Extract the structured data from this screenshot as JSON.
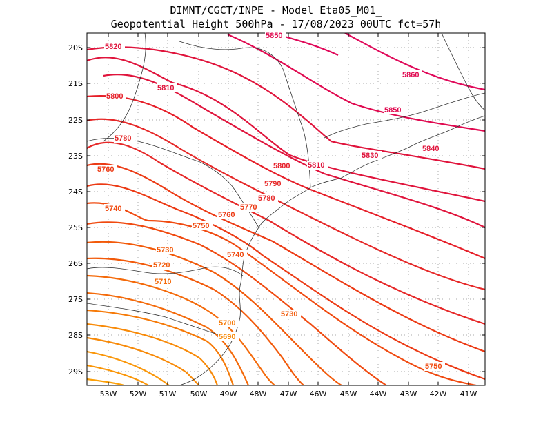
{
  "title_line1": "DIMNT/CGCT/INPE  -  Model Eta05_M01_",
  "title_line2": "Geopotential Height 500hPa  -  17/08/2023 00UTC fct=57h",
  "lat_ticks": [
    "20S",
    "21S",
    "22S",
    "23S",
    "24S",
    "25S",
    "26S",
    "27S",
    "28S",
    "29S"
  ],
  "lon_ticks": [
    "53W",
    "52W",
    "51W",
    "50W",
    "49W",
    "48W",
    "47W",
    "46W",
    "45W",
    "44W",
    "43W",
    "42W",
    "41W"
  ],
  "contour_labels": [
    {
      "text": "5850",
      "color": "#e00a50"
    },
    {
      "text": "5820",
      "color": "#e0143c"
    },
    {
      "text": "5860",
      "color": "#e00a50"
    },
    {
      "text": "5810",
      "color": "#e0143c"
    },
    {
      "text": "5800",
      "color": "#e61e28"
    },
    {
      "text": "5850",
      "color": "#e00a50"
    },
    {
      "text": "5780",
      "color": "#e62828"
    },
    {
      "text": "5840",
      "color": "#e0143c"
    },
    {
      "text": "5830",
      "color": "#e0143c"
    },
    {
      "text": "5800",
      "color": "#e61e28"
    },
    {
      "text": "5810",
      "color": "#e0143c"
    },
    {
      "text": "5760",
      "color": "#ec3a14"
    },
    {
      "text": "5790",
      "color": "#e62828"
    },
    {
      "text": "5780",
      "color": "#e62828"
    },
    {
      "text": "5740",
      "color": "#f04a10"
    },
    {
      "text": "5770",
      "color": "#ec3a14"
    },
    {
      "text": "5760",
      "color": "#ec3a14"
    },
    {
      "text": "5750",
      "color": "#f04a10"
    },
    {
      "text": "5730",
      "color": "#f25a0a"
    },
    {
      "text": "5740",
      "color": "#f04a10"
    },
    {
      "text": "5720",
      "color": "#f25a0a"
    },
    {
      "text": "5710",
      "color": "#f46a0a"
    },
    {
      "text": "5730",
      "color": "#f25a0a"
    },
    {
      "text": "5700",
      "color": "#f67a08"
    },
    {
      "text": "5690",
      "color": "#f88a08"
    },
    {
      "text": "5750",
      "color": "#f04a10"
    }
  ]
}
